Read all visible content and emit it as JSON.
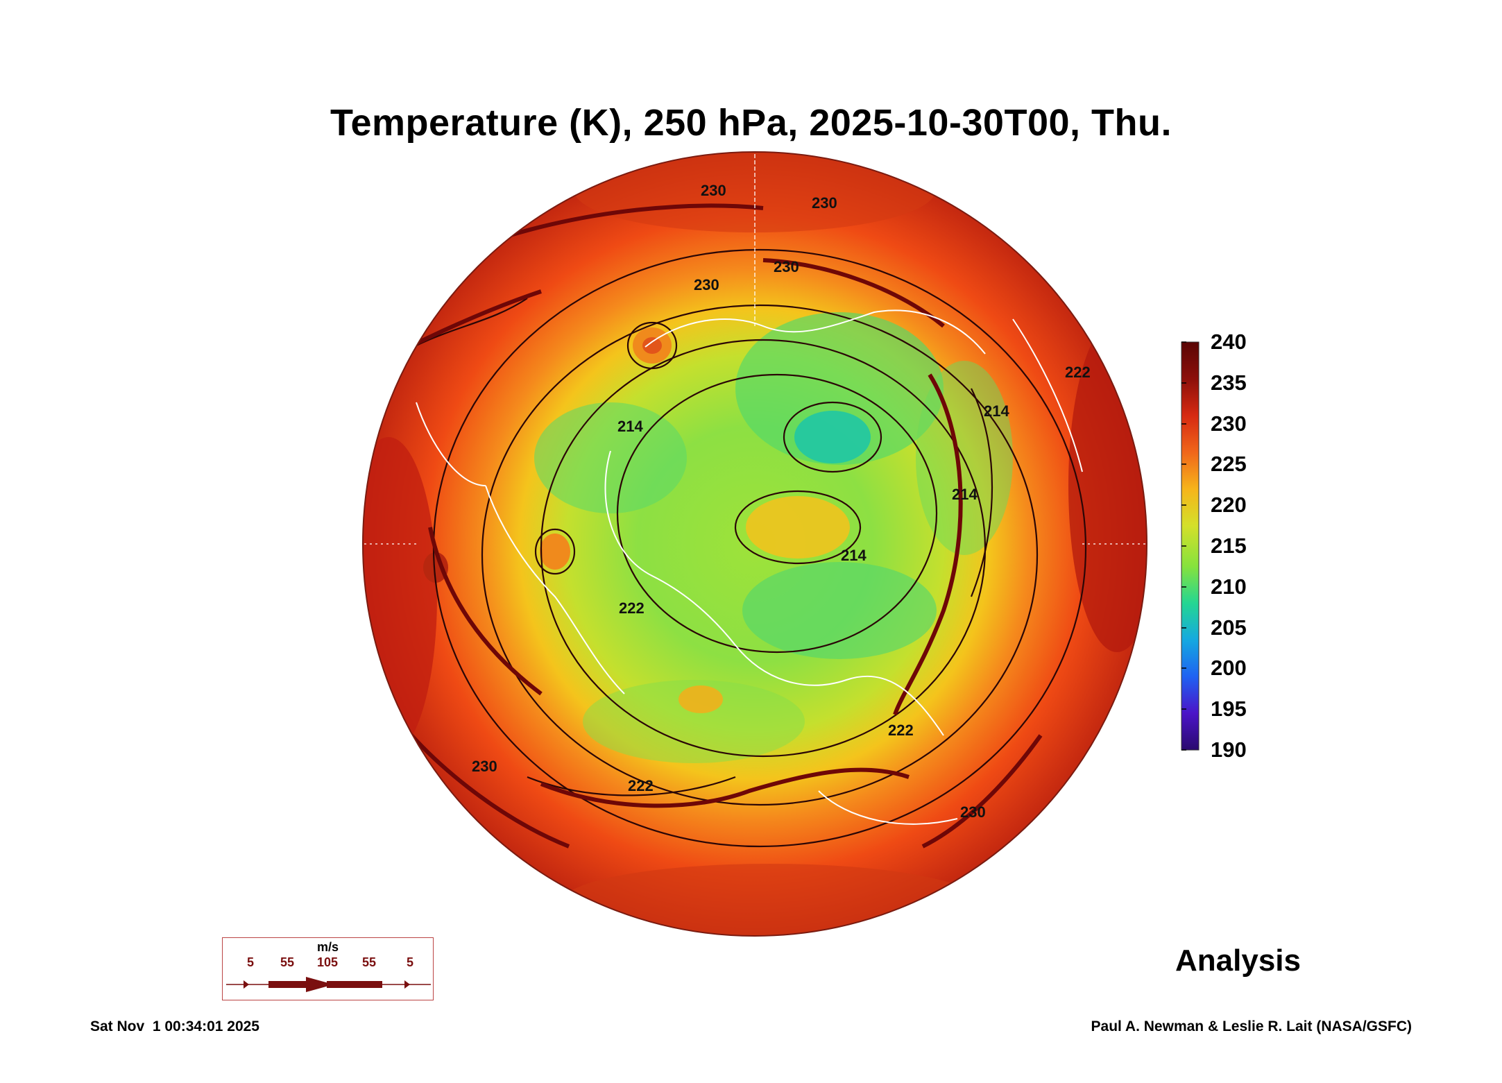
{
  "title": "Temperature (K), 250 hPa, 2025-10-30T00, Thu.",
  "colorbar": {
    "ticks": [
      "240",
      "235",
      "230",
      "225",
      "220",
      "215",
      "210",
      "205",
      "200",
      "195",
      "190"
    ],
    "colors": [
      "#2a0a6e",
      "#4b14c8",
      "#1f62f2",
      "#15a9e0",
      "#24d692",
      "#86e23d",
      "#d4e02a",
      "#f6b41a",
      "#f0661a",
      "#d62a12",
      "#8c0f0a",
      "#5a0605"
    ]
  },
  "contour_labels": [
    "230",
    "230",
    "230",
    "230",
    "214",
    "214",
    "214",
    "214",
    "222",
    "222",
    "222",
    "222",
    "230",
    "230"
  ],
  "wind_legend": {
    "unit": "m/s",
    "values": [
      "5",
      "55",
      "105",
      "55",
      "5"
    ]
  },
  "analysis_label": "Analysis",
  "footer": {
    "timestamp": "Sat Nov  1 00:34:01 2025",
    "credit": "Paul A. Newman & Leslie R. Lait (NASA/GSFC)"
  }
}
